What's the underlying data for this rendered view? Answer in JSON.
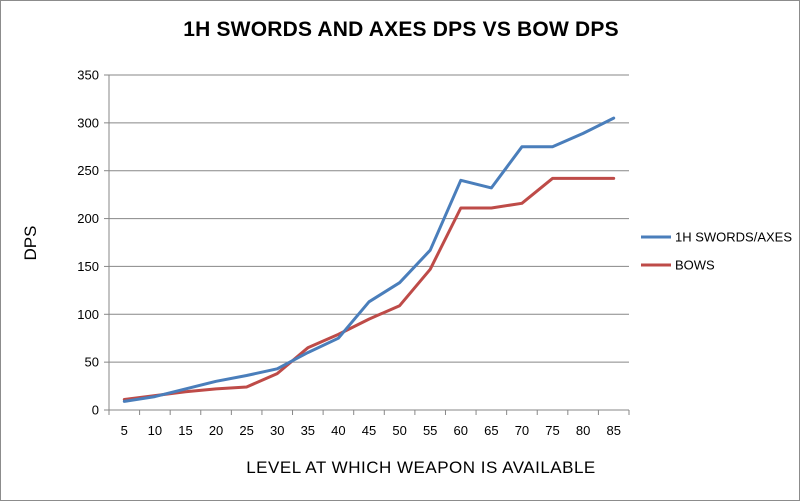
{
  "chart_data": {
    "type": "line",
    "title": "1H SWORDS AND AXES DPS VS BOW DPS",
    "xlabel": "LEVEL AT WHICH WEAPON IS AVAILABLE",
    "ylabel": "DPS",
    "x": [
      5,
      10,
      15,
      20,
      25,
      30,
      35,
      40,
      45,
      50,
      55,
      60,
      65,
      70,
      75,
      80,
      85
    ],
    "ylim": [
      0,
      350
    ],
    "yticks": [
      0,
      50,
      100,
      150,
      200,
      250,
      300,
      350
    ],
    "grid": true,
    "legend": "right",
    "series": [
      {
        "name": "1H SWORDS/AXES",
        "color": "#4a7ebb",
        "values": [
          9,
          14,
          22,
          30,
          36,
          43,
          60,
          75,
          113,
          133,
          167,
          240,
          232,
          275,
          275,
          289,
          305
        ]
      },
      {
        "name": "BOWS",
        "color": "#be4b48",
        "values": [
          11,
          15,
          19,
          22,
          24,
          38,
          65,
          79,
          95,
          109,
          147,
          211,
          211,
          216,
          242,
          242,
          242
        ]
      }
    ]
  }
}
